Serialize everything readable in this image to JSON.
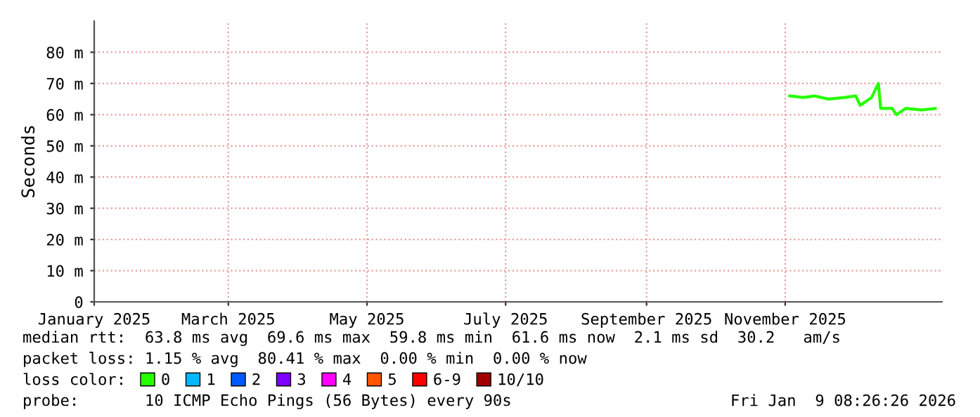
{
  "chart_data": {
    "type": "line",
    "ylabel": "Seconds",
    "x": [
      "2025-11-03",
      "2025-11-09",
      "2025-11-14",
      "2025-11-20",
      "2025-11-27",
      "2025-12-02",
      "2025-12-04",
      "2025-12-09",
      "2025-12-12",
      "2025-12-13",
      "2025-12-18",
      "2025-12-20",
      "2025-12-24",
      "2025-12-31",
      "2026-01-06"
    ],
    "series": [
      {
        "name": "0",
        "color": "#26ff00",
        "values": [
          66,
          65.5,
          66,
          65,
          65.5,
          66,
          63,
          65.5,
          70,
          62,
          62,
          60,
          62,
          61.5,
          62
        ]
      },
      {
        "name": "1",
        "color": "#00b8ff",
        "values": [
          null,
          null,
          null,
          null,
          null,
          null,
          null,
          null,
          null,
          null,
          null,
          null,
          null,
          null,
          null
        ]
      },
      {
        "name": "2",
        "color": "#0059ff",
        "values": [
          null,
          null,
          null,
          null,
          null,
          null,
          null,
          null,
          null,
          null,
          null,
          null,
          null,
          null,
          null
        ]
      },
      {
        "name": "3",
        "color": "#7e00ff",
        "values": [
          null,
          null,
          null,
          null,
          null,
          null,
          null,
          null,
          null,
          null,
          null,
          null,
          null,
          null,
          null
        ]
      },
      {
        "name": "4",
        "color": "#ff00ff",
        "values": [
          null,
          null,
          null,
          null,
          null,
          null,
          null,
          null,
          null,
          null,
          null,
          null,
          null,
          null,
          null
        ]
      },
      {
        "name": "5",
        "color": "#ff5500",
        "values": [
          null,
          null,
          null,
          null,
          null,
          null,
          null,
          null,
          null,
          null,
          null,
          null,
          null,
          null,
          null
        ]
      },
      {
        "name": "6-9",
        "color": "#ff0000",
        "values": [
          null,
          null,
          null,
          null,
          null,
          null,
          null,
          null,
          null,
          null,
          null,
          null,
          null,
          null,
          null
        ]
      },
      {
        "name": "10/10",
        "color": "#a10000",
        "values": [
          null,
          null,
          null,
          null,
          null,
          null,
          null,
          null,
          null,
          null,
          null,
          null,
          null,
          null,
          null
        ]
      }
    ],
    "legend_title": "loss color:",
    "legend": "bottom",
    "xlim": [
      "2025-01-01",
      "2026-01-09"
    ],
    "xticks": [
      {
        "value": "2025-01-01",
        "label": "January 2025"
      },
      {
        "value": "2025-03-01",
        "label": "March 2025"
      },
      {
        "value": "2025-05-01",
        "label": "May 2025"
      },
      {
        "value": "2025-07-01",
        "label": "July 2025"
      },
      {
        "value": "2025-09-01",
        "label": "September 2025"
      },
      {
        "value": "2025-11-01",
        "label": "November 2025"
      }
    ],
    "ylim": [
      0,
      90
    ],
    "yticks": [
      0,
      {
        "value": 10,
        "label": "10 m"
      },
      {
        "value": 20,
        "label": "20 m"
      },
      {
        "value": 30,
        "label": "30 m"
      },
      {
        "value": 40,
        "label": "40 m"
      },
      {
        "value": 50,
        "label": "50 m"
      },
      {
        "value": 60,
        "label": "60 m"
      },
      {
        "value": 70,
        "label": "70 m"
      },
      {
        "value": 80,
        "label": "80 m"
      }
    ],
    "grid": true,
    "annotations": [
      "median rtt:  63.8 ms avg  69.6 ms max  59.8 ms min  61.6 ms now  2.1 ms sd  30.2   am/s",
      "packet loss: 1.15 % avg  80.41 % max  0.00 % min  0.00 % now",
      "probe:       10 ICMP Echo Pings (56 Bytes) every 90s",
      "Fri Jan  9 08:26:26 2026"
    ]
  }
}
